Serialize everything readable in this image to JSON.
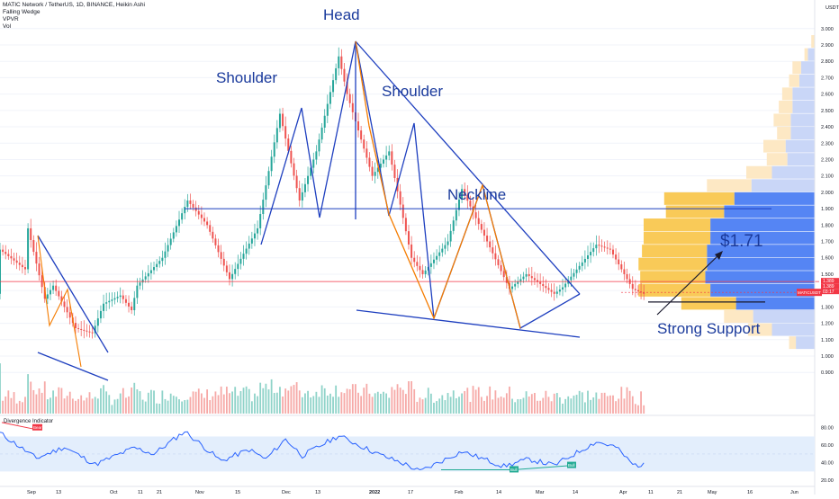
{
  "header": {
    "symbol_line": "MATIC Network / TetherUS, 1D, BINANCE, Heikin Ashi",
    "indicators": [
      "Falling Wedge",
      "VPVR",
      "Vol"
    ]
  },
  "price_axis": {
    "currency": "USDT",
    "ticks": [
      "3.000",
      "2.900",
      "2.800",
      "2.700",
      "2.600",
      "2.500",
      "2.400",
      "2.300",
      "2.200",
      "2.100",
      "2.000",
      "1.900",
      "1.800",
      "1.700",
      "1.600",
      "1.500",
      "1.400",
      "1.300",
      "1.200",
      "1.100",
      "1.000",
      "0.900"
    ],
    "last_price_labels": [
      "1.389",
      "1.389",
      "03:17"
    ],
    "symbol_tag": "MATICUSDT"
  },
  "time_axis": {
    "ticks": [
      "Sep",
      "13",
      "Oct",
      "11",
      "21",
      "Nov",
      "15",
      "Dec",
      "13",
      "2022",
      "17",
      "Feb",
      "14",
      "Mar",
      "14",
      "Apr",
      "11",
      "21",
      "May",
      "16",
      "Jun"
    ]
  },
  "annotations": {
    "head": "Head",
    "shoulder_left": "Shoulder",
    "shoulder_right": "Shoulder",
    "neckline": "Neckline",
    "target": "$1.71",
    "support": "Strong Support"
  },
  "oscillator": {
    "title": "Divergence Indicator",
    "ticks": [
      "80.00",
      "60.00",
      "40.00",
      "20.00"
    ],
    "bear_label": "Bear",
    "bull_labels": [
      "Bull",
      "Bull"
    ]
  },
  "colors": {
    "up": "#26a69a",
    "down": "#ef5350",
    "pattern_blue": "#1e3fbf",
    "wedge_orange": "#f57c00",
    "support_red": "#f23645",
    "vp_up": "#4c7ef3",
    "vp_down": "#f9c74f",
    "osc_line": "#2962ff",
    "osc_band": "#e3eefc"
  },
  "chart_data": {
    "type": "candlestick",
    "x_range": [
      "2021-08-28",
      "2022-06-07"
    ],
    "y_range": [
      0.85,
      3.0
    ],
    "price_path_anchors": [
      {
        "date": "2021-08-28",
        "price": 1.65
      },
      {
        "date": "2021-09-06",
        "price": 1.53
      },
      {
        "date": "2021-09-07",
        "price": 1.78
      },
      {
        "date": "2021-09-13",
        "price": 1.35
      },
      {
        "date": "2021-09-16",
        "price": 1.43
      },
      {
        "date": "2021-09-24",
        "price": 1.17
      },
      {
        "date": "2021-09-30",
        "price": 1.14
      },
      {
        "date": "2021-10-04",
        "price": 1.32
      },
      {
        "date": "2021-10-10",
        "price": 1.37
      },
      {
        "date": "2021-10-14",
        "price": 1.28
      },
      {
        "date": "2021-10-16",
        "price": 1.43
      },
      {
        "date": "2021-10-25",
        "price": 1.6
      },
      {
        "date": "2021-11-03",
        "price": 1.95
      },
      {
        "date": "2021-11-10",
        "price": 1.8
      },
      {
        "date": "2021-11-18",
        "price": 1.47
      },
      {
        "date": "2021-11-28",
        "price": 1.78
      },
      {
        "date": "2021-12-06",
        "price": 2.48
      },
      {
        "date": "2021-12-13",
        "price": 1.95
      },
      {
        "date": "2021-12-19",
        "price": 2.25
      },
      {
        "date": "2021-12-27",
        "price": 2.83
      },
      {
        "date": "2021-12-30",
        "price": 2.6
      },
      {
        "date": "2022-01-08",
        "price": 2.1
      },
      {
        "date": "2022-01-14",
        "price": 2.25
      },
      {
        "date": "2022-01-22",
        "price": 1.6
      },
      {
        "date": "2022-01-26",
        "price": 1.5
      },
      {
        "date": "2022-02-04",
        "price": 1.7
      },
      {
        "date": "2022-02-09",
        "price": 2.02
      },
      {
        "date": "2022-02-18",
        "price": 1.7
      },
      {
        "date": "2022-02-26",
        "price": 1.41
      },
      {
        "date": "2022-03-04",
        "price": 1.5
      },
      {
        "date": "2022-03-14",
        "price": 1.38
      },
      {
        "date": "2022-03-17",
        "price": 1.42
      },
      {
        "date": "2022-03-29",
        "price": 1.68
      },
      {
        "date": "2022-04-03",
        "price": 1.65
      },
      {
        "date": "2022-04-11",
        "price": 1.41
      },
      {
        "date": "2022-04-15",
        "price": 1.38
      }
    ],
    "volume_profile": [
      {
        "price": 2.92,
        "up": 0,
        "down": 0.02
      },
      {
        "price": 2.84,
        "up": 0.04,
        "down": 0.02
      },
      {
        "price": 2.76,
        "up": 0.08,
        "down": 0.05
      },
      {
        "price": 2.68,
        "up": 0.09,
        "down": 0.06
      },
      {
        "price": 2.6,
        "up": 0.13,
        "down": 0.06
      },
      {
        "price": 2.52,
        "up": 0.13,
        "down": 0.08
      },
      {
        "price": 2.44,
        "up": 0.14,
        "down": 0.1
      },
      {
        "price": 2.36,
        "up": 0.14,
        "down": 0.08
      },
      {
        "price": 2.28,
        "up": 0.17,
        "down": 0.13
      },
      {
        "price": 2.2,
        "up": 0.16,
        "down": 0.12
      },
      {
        "price": 2.12,
        "up": 0.25,
        "down": 0.15
      },
      {
        "price": 2.04,
        "up": 0.37,
        "down": 0.26
      },
      {
        "price": 1.96,
        "up": 0.47,
        "down": 0.41
      },
      {
        "price": 1.88,
        "up": 0.53,
        "down": 0.34
      },
      {
        "price": 1.8,
        "up": 0.61,
        "down": 0.39
      },
      {
        "price": 1.72,
        "up": 0.61,
        "down": 0.39
      },
      {
        "price": 1.64,
        "up": 0.63,
        "down": 0.38
      },
      {
        "price": 1.56,
        "up": 0.63,
        "down": 0.4
      },
      {
        "price": 1.48,
        "up": 0.64,
        "down": 0.38
      },
      {
        "price": 1.4,
        "up": 0.61,
        "down": 0.42
      },
      {
        "price": 1.32,
        "up": 0.46,
        "down": 0.32
      },
      {
        "price": 1.24,
        "up": 0.36,
        "down": 0.17
      },
      {
        "price": 1.16,
        "up": 0.25,
        "down": 0.14
      },
      {
        "price": 1.08,
        "up": 0.11,
        "down": 0.04
      }
    ],
    "horizontal_levels": {
      "neckline": 1.9,
      "support": 1.33,
      "last_price": 1.389
    },
    "target_price": 1.71,
    "oscillator_range": [
      15,
      90
    ],
    "oscillator_band": [
      30,
      70
    ],
    "oscillator_anchors": [
      {
        "date": "2021-08-28",
        "value": 74
      },
      {
        "date": "2021-09-10",
        "value": 45
      },
      {
        "date": "2021-09-20",
        "value": 58
      },
      {
        "date": "2021-10-01",
        "value": 38
      },
      {
        "date": "2021-10-15",
        "value": 57
      },
      {
        "date": "2021-10-22",
        "value": 50
      },
      {
        "date": "2021-11-02",
        "value": 76
      },
      {
        "date": "2021-11-15",
        "value": 42
      },
      {
        "date": "2021-11-25",
        "value": 55
      },
      {
        "date": "2021-12-01",
        "value": 44
      },
      {
        "date": "2021-12-08",
        "value": 67
      },
      {
        "date": "2021-12-14",
        "value": 48
      },
      {
        "date": "2021-12-27",
        "value": 71
      },
      {
        "date": "2022-01-10",
        "value": 50
      },
      {
        "date": "2022-01-20",
        "value": 38
      },
      {
        "date": "2022-01-25",
        "value": 30
      },
      {
        "date": "2022-02-09",
        "value": 53
      },
      {
        "date": "2022-02-24",
        "value": 36
      },
      {
        "date": "2022-03-05",
        "value": 44
      },
      {
        "date": "2022-03-14",
        "value": 37
      },
      {
        "date": "2022-03-29",
        "value": 64
      },
      {
        "date": "2022-04-05",
        "value": 58
      },
      {
        "date": "2022-04-11",
        "value": 38
      },
      {
        "date": "2022-04-15",
        "value": 37
      }
    ]
  }
}
